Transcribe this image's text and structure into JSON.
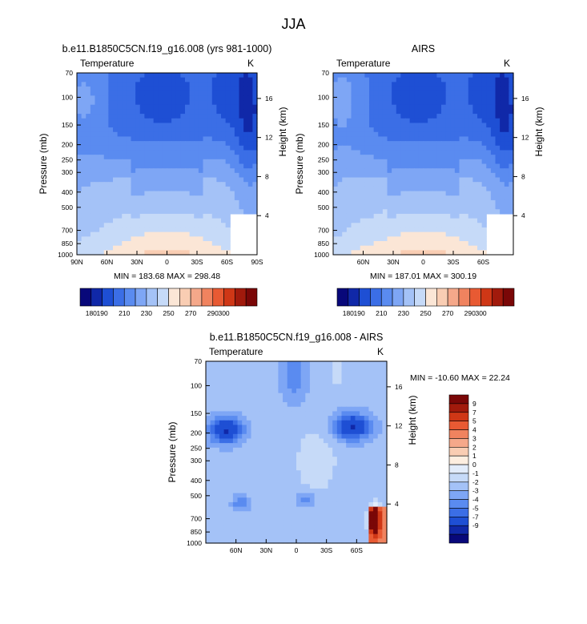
{
  "page_title": "JJA",
  "palettes": {
    "abs": [
      "#08087a",
      "#1028a8",
      "#1e4fd4",
      "#3b6ee6",
      "#5a8bf0",
      "#7ea6f5",
      "#a4c2f7",
      "#c6daf8",
      "#fbe6d6",
      "#f9cdb3",
      "#f5a88a",
      "#f0835f",
      "#e85a33",
      "#cf3716",
      "#a11a0c",
      "#7a0707"
    ],
    "diff": [
      "#08087a",
      "#1028a8",
      "#1e4fd4",
      "#3b6ee6",
      "#5a8bf0",
      "#7ea6f5",
      "#a4c2f7",
      "#c6daf8",
      "#e2ecfb",
      "#fdeee0",
      "#f9cdb3",
      "#f5a88a",
      "#f0835f",
      "#e85a33",
      "#cf3716",
      "#a11a0c",
      "#7a0707"
    ]
  },
  "chart_data": [
    {
      "id": "model",
      "type": "heatmap",
      "title": "b.e11.B1850C5CN.f19_g16.008 (yrs 981-1000)",
      "left_label": "Temperature",
      "right_label": "K",
      "ylabel": "Pressure (mb)",
      "ylabel_right": "Height (km)",
      "x_ticks": [
        "90N",
        "60N",
        "30N",
        "0",
        "30S",
        "60S",
        "90S"
      ],
      "x_tick_lat": [
        90,
        60,
        30,
        0,
        -30,
        -60,
        -90
      ],
      "xlim": [
        90,
        -90
      ],
      "y_ticks": [
        "70",
        "100",
        "150",
        "200",
        "250",
        "300",
        "400",
        "500",
        "700",
        "850",
        "1000"
      ],
      "y_tick_p": [
        70,
        100,
        150,
        200,
        250,
        300,
        400,
        500,
        700,
        850,
        1000
      ],
      "ylim": [
        70,
        1000
      ],
      "height_ticks": [
        "16",
        "12",
        "8",
        "4"
      ],
      "height_tick_km": [
        16,
        12,
        8,
        4
      ],
      "min_label": "MIN = 183.68",
      "max_label": "MAX = 298.48",
      "min": 183.68,
      "max": 298.48,
      "legend_orientation": "horizontal",
      "legend_labels": [
        "180",
        "190",
        "210",
        "230",
        "250",
        "270",
        "290",
        "300"
      ]
    },
    {
      "id": "obs",
      "type": "heatmap",
      "title": "AIRS",
      "left_label": "Temperature",
      "right_label": "K",
      "ylabel": "Pressure (mb)",
      "ylabel_right": "Height (km)",
      "x_ticks": [
        "60N",
        "30N",
        "0",
        "30S",
        "60S"
      ],
      "x_tick_lat": [
        60,
        30,
        0,
        -30,
        -60
      ],
      "xlim": [
        90,
        -90
      ],
      "y_ticks": [
        "70",
        "100",
        "150",
        "200",
        "250",
        "300",
        "400",
        "500",
        "700",
        "850",
        "1000"
      ],
      "y_tick_p": [
        70,
        100,
        150,
        200,
        250,
        300,
        400,
        500,
        700,
        850,
        1000
      ],
      "ylim": [
        70,
        1000
      ],
      "height_ticks": [
        "16",
        "12",
        "8",
        "4"
      ],
      "height_tick_km": [
        16,
        12,
        8,
        4
      ],
      "min_label": "MIN = 187.01",
      "max_label": "MAX = 300.19",
      "min": 187.01,
      "max": 300.19,
      "legend_orientation": "horizontal",
      "legend_labels": [
        "180",
        "190",
        "210",
        "230",
        "250",
        "270",
        "290",
        "300"
      ]
    },
    {
      "id": "diff",
      "type": "heatmap",
      "title": "b.e11.B1850C5CN.f19_g16.008 - AIRS",
      "left_label": "Temperature",
      "right_label": "K",
      "ylabel": "Pressure (mb)",
      "ylabel_right": "Height (km)",
      "x_ticks": [
        "60N",
        "30N",
        "0",
        "30S",
        "60S"
      ],
      "x_tick_lat": [
        60,
        30,
        0,
        -30,
        -60
      ],
      "xlim": [
        90,
        -90
      ],
      "y_ticks": [
        "70",
        "100",
        "150",
        "200",
        "250",
        "300",
        "400",
        "500",
        "700",
        "850",
        "1000"
      ],
      "y_tick_p": [
        70,
        100,
        150,
        200,
        250,
        300,
        400,
        500,
        700,
        850,
        1000
      ],
      "ylim": [
        70,
        1000
      ],
      "height_ticks": [
        "16",
        "12",
        "8",
        "4"
      ],
      "height_tick_km": [
        16,
        12,
        8,
        4
      ],
      "min_label": "MIN = -10.60",
      "max_label": "MAX =  22.24",
      "min": -10.6,
      "max": 22.24,
      "legend_orientation": "vertical",
      "legend_labels": [
        "9",
        "7",
        "5",
        "4",
        "3",
        "2",
        "1",
        "0",
        "-1",
        "-2",
        "-3",
        "-4",
        "-5",
        "-7",
        "-9"
      ]
    }
  ]
}
